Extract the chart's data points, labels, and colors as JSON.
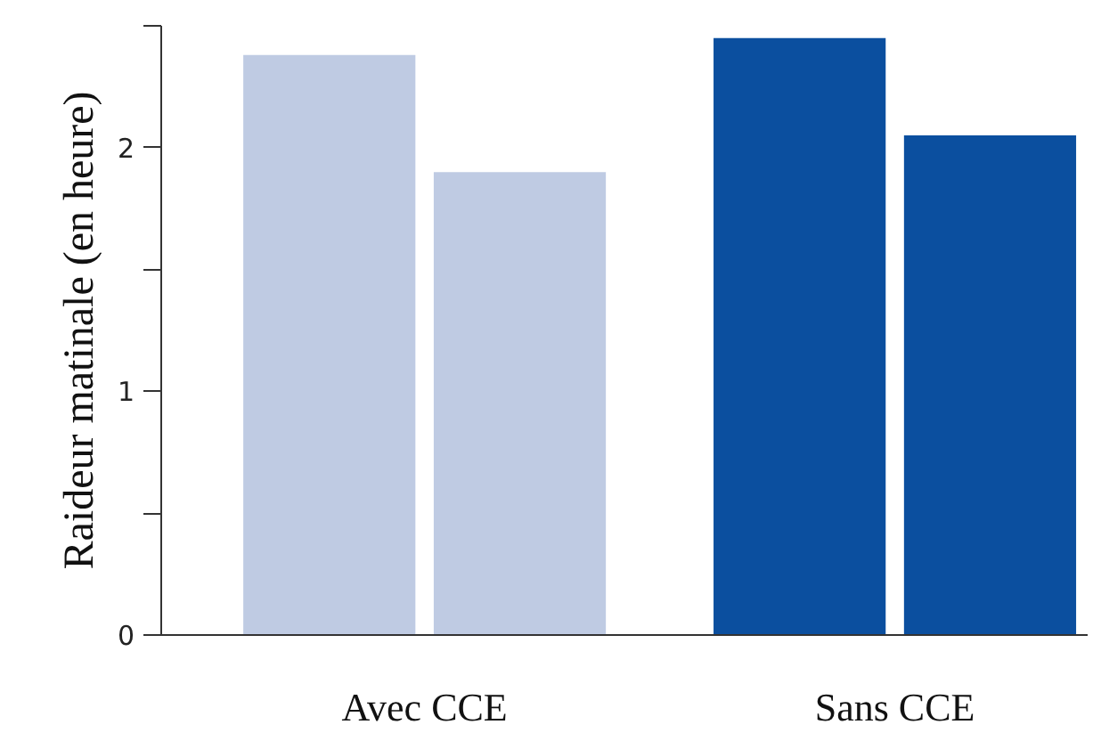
{
  "chart_data": {
    "type": "bar",
    "ylabel": "Raideur matinale (en heure)",
    "categories": [
      "Avec CCE",
      "Sans CCE"
    ],
    "series": [
      {
        "colors": [
          "#bfcbe3",
          "#0b4f9f"
        ],
        "values": [
          2.38,
          2.45
        ]
      },
      {
        "colors": [
          "#bfcbe3",
          "#0b4f9f"
        ],
        "values": [
          1.9,
          2.05
        ]
      }
    ],
    "ylim": [
      0,
      2.5
    ],
    "yticks": [
      0,
      {
        "value": 0.5,
        "label": null
      },
      1,
      {
        "value": 1.5,
        "label": null
      },
      2,
      {
        "value": 2.5,
        "label": null
      }
    ],
    "grid": false
  }
}
